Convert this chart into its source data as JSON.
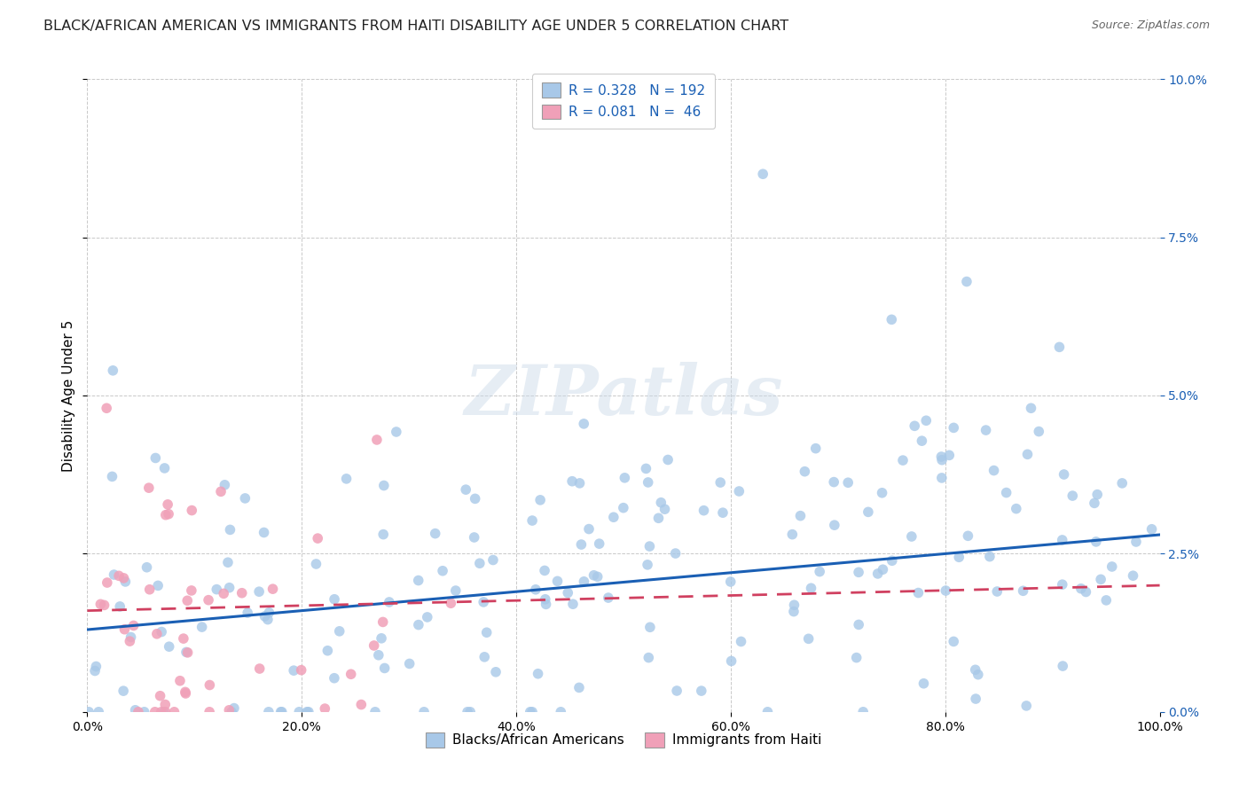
{
  "title": "BLACK/AFRICAN AMERICAN VS IMMIGRANTS FROM HAITI DISABILITY AGE UNDER 5 CORRELATION CHART",
  "source": "Source: ZipAtlas.com",
  "ylabel": "Disability Age Under 5",
  "xlim": [
    0.0,
    1.0
  ],
  "ylim": [
    -0.005,
    0.105
  ],
  "plot_ylim": [
    0.0,
    0.1
  ],
  "blue_color": "#a8c8e8",
  "pink_color": "#f0a0b8",
  "blue_line_color": "#1a5fb4",
  "pink_line_color": "#d04060",
  "legend_label1": "R = 0.328   N = 192",
  "legend_label2": "R = 0.081   N =  46",
  "watermark": "ZIPatlas",
  "blue_R": 0.328,
  "blue_N": 192,
  "pink_R": 0.081,
  "pink_N": 46,
  "background_color": "#ffffff",
  "grid_color": "#bbbbbb",
  "title_fontsize": 11.5,
  "axis_label_fontsize": 11,
  "tick_fontsize": 10,
  "legend_fontsize": 11,
  "right_tick_color": "#1a5fb4"
}
